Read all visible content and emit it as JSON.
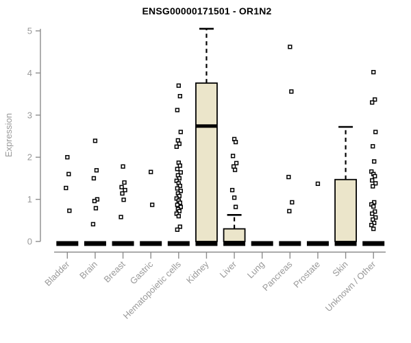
{
  "chart_data": {
    "type": "boxplot",
    "title": "ENSG00000171501 - OR1N2",
    "ylabel": "Expression",
    "xlabel": "",
    "ylim": [
      0,
      5
    ],
    "yticks": [
      0,
      1,
      2,
      3,
      4,
      5
    ],
    "grid": false,
    "legend": "none",
    "categories": [
      "Bladder",
      "Brain",
      "Breast",
      "Gastric",
      "Hematopoietic cells",
      "Kidney",
      "Liver",
      "Lung",
      "Pancreas",
      "Prostate",
      "Skin",
      "Unknown / Other"
    ],
    "series": [
      {
        "category": "Bladder",
        "q1": 0,
        "median": 0,
        "q3": 0,
        "whisker_low": 0,
        "whisker_high": 0,
        "points": [
          2.0,
          1.6,
          1.27,
          0.73
        ]
      },
      {
        "category": "Brain",
        "q1": 0,
        "median": 0,
        "q3": 0,
        "whisker_low": 0,
        "whisker_high": 0,
        "points": [
          2.39,
          1.69,
          1.5,
          1.0,
          0.96,
          0.79,
          0.41
        ]
      },
      {
        "category": "Breast",
        "q1": 0,
        "median": 0,
        "q3": 0,
        "whisker_low": 0,
        "whisker_high": 0,
        "points": [
          1.78,
          1.4,
          1.29,
          1.22,
          1.14,
          0.99,
          0.58
        ]
      },
      {
        "category": "Gastric",
        "q1": 0,
        "median": 0,
        "q3": 0,
        "whisker_low": 0,
        "whisker_high": 0,
        "points": [
          1.65,
          0.87
        ]
      },
      {
        "category": "Hematopoietic cells",
        "q1": 0,
        "median": 0,
        "q3": 0,
        "whisker_low": 0,
        "whisker_high": 0,
        "points": [
          3.7,
          3.45,
          3.12,
          2.6,
          2.4,
          2.32,
          2.25,
          1.87,
          1.8,
          1.72,
          1.64,
          1.57,
          1.5,
          1.44,
          1.38,
          1.32,
          1.26,
          1.2,
          1.14,
          1.08,
          1.02,
          0.97,
          0.92,
          0.87,
          0.82,
          0.77,
          0.72,
          0.66,
          0.6,
          0.35,
          0.28
        ]
      },
      {
        "category": "Kidney",
        "q1": 0,
        "median": 2.74,
        "q3": 3.76,
        "whisker_low": 0,
        "whisker_high": 5.05,
        "points": []
      },
      {
        "category": "Liver",
        "q1": 0,
        "median": 0,
        "q3": 0.3,
        "whisker_low": 0,
        "whisker_high": 0.63,
        "points": [
          2.43,
          2.36,
          2.03,
          1.86,
          1.78,
          1.7,
          1.22,
          1.04,
          0.82
        ]
      },
      {
        "category": "Lung",
        "q1": 0,
        "median": 0,
        "q3": 0,
        "whisker_low": 0,
        "whisker_high": 0,
        "points": []
      },
      {
        "category": "Pancreas",
        "q1": 0,
        "median": 0,
        "q3": 0,
        "whisker_low": 0,
        "whisker_high": 0,
        "points": [
          4.62,
          3.56,
          1.53,
          0.93,
          0.72
        ]
      },
      {
        "category": "Prostate",
        "q1": 0,
        "median": 0,
        "q3": 0,
        "whisker_low": 0,
        "whisker_high": 0,
        "points": [
          1.37
        ]
      },
      {
        "category": "Skin",
        "q1": 0,
        "median": 0,
        "q3": 1.47,
        "whisker_low": 0,
        "whisker_high": 2.72,
        "points": []
      },
      {
        "category": "Unknown / Other",
        "q1": 0,
        "median": 0,
        "q3": 0,
        "whisker_low": 0,
        "whisker_high": 0,
        "points": [
          4.02,
          3.37,
          3.3,
          2.6,
          2.26,
          1.9,
          1.66,
          1.6,
          1.55,
          1.45,
          1.38,
          1.31,
          0.93,
          0.88,
          0.83,
          0.71,
          0.66,
          0.57,
          0.52,
          0.44,
          0.39,
          0.3
        ]
      }
    ],
    "style": {
      "box_fill": "#EBE5CA",
      "box_stroke": "#000000",
      "median_color": "#000000",
      "zero_bar_color": "#000000",
      "point_fill": "#FFFFFF",
      "point_stroke": "#000000",
      "axis_color": "#8C8C8C",
      "tick_label_color": "#999999",
      "title_color": "#000000"
    }
  }
}
